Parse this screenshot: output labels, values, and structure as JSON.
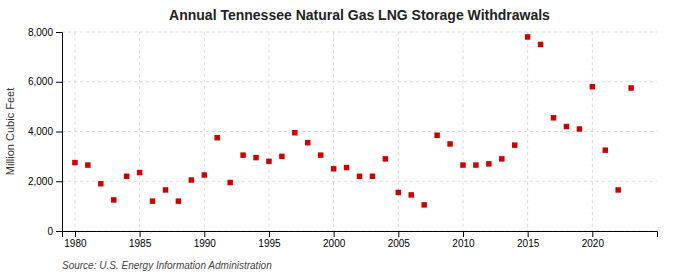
{
  "chart_data": {
    "type": "scatter",
    "title": "Annual Tennessee Natural Gas LNG Storage Withdrawals",
    "ylabel": "Million Cubic Feet",
    "source": "Source: U.S. Energy Information Administration",
    "x": [
      1980,
      1981,
      1982,
      1983,
      1984,
      1985,
      1986,
      1987,
      1988,
      1989,
      1990,
      1991,
      1992,
      1993,
      1994,
      1995,
      1996,
      1997,
      1998,
      1999,
      2000,
      2001,
      2002,
      2003,
      2004,
      2005,
      2006,
      2007,
      2008,
      2009,
      2010,
      2011,
      2012,
      2013,
      2014,
      2015,
      2016,
      2017,
      2018,
      2019,
      2020,
      2021,
      2022,
      2023
    ],
    "values": [
      2750,
      2650,
      1900,
      1250,
      2200,
      2350,
      1200,
      1650,
      1200,
      2050,
      2250,
      3750,
      1950,
      3050,
      2950,
      2800,
      3000,
      3950,
      3550,
      3050,
      2500,
      2550,
      2200,
      2200,
      2900,
      1550,
      1450,
      1050,
      3850,
      3500,
      2650,
      2650,
      2700,
      2900,
      3450,
      7800,
      7500,
      4550,
      4200,
      4100,
      5800,
      3250,
      1650,
      5750
    ],
    "color": "#cc0000",
    "marker": "square",
    "xlim": [
      1979,
      2025
    ],
    "xticks": [
      1980,
      1985,
      1990,
      1995,
      2000,
      2005,
      2010,
      2015,
      2020
    ],
    "ylim": [
      0,
      8000
    ],
    "yticks": [
      0,
      {
        "value": 2000,
        "label": "2,000"
      },
      {
        "value": 4000,
        "label": "4,000"
      },
      {
        "value": 6000,
        "label": "6,000"
      },
      {
        "value": 8000,
        "label": "8,000"
      }
    ],
    "grid": true
  }
}
